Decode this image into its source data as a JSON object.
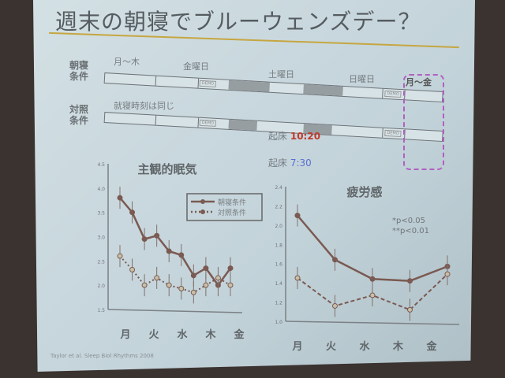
{
  "title": "週末の朝寝でブルーウェンズデー？",
  "schedule": {
    "row1_label": "朝寝\n条件",
    "row2_label": "対照\n条件",
    "mon_thu": "月～木",
    "fri": "金曜日",
    "sat": "土曜日",
    "sun": "日曜日",
    "mon_fri": "月～金",
    "same_bedtime": "就寝時刻は同じ",
    "wake_label": "起床",
    "wake_late": "10:20",
    "wake_normal": "7:30",
    "demo": "DEMO"
  },
  "citation": "Taylor et al. Sleep Biol Rhythms 2008",
  "colors": {
    "main": "#7a5a52",
    "late_time": "#c0392b",
    "normal_time": "#5a6fd0",
    "dashed_box": "#b060c0"
  },
  "chart_data": [
    {
      "type": "line",
      "title": "主観的眠気",
      "ylim": [
        1.5,
        4.5
      ],
      "yticks": [
        "4.5",
        "4.0",
        "3.5",
        "3.0",
        "2.5",
        "2.0",
        "1.5"
      ],
      "day_labels": [
        "月",
        "火",
        "水",
        "木",
        "金"
      ],
      "legend": "top-right",
      "series": [
        {
          "name": "朝寝条件",
          "style": "solid",
          "values": [
            3.8,
            3.5,
            2.95,
            3.02,
            2.7,
            2.62,
            2.2,
            2.35,
            2.0,
            2.35
          ]
        },
        {
          "name": "対照条件",
          "style": "dotted",
          "values": [
            2.6,
            2.32,
            2.0,
            2.15,
            2.0,
            1.93,
            1.85,
            2.0,
            2.15,
            2.0
          ]
        }
      ]
    },
    {
      "type": "line",
      "title": "疲労感",
      "ylim": [
        1.0,
        2.4
      ],
      "yticks": [
        "2.4",
        "2.2",
        "2.0",
        "1.8",
        "1.6",
        "1.4",
        "1.2",
        "1.0"
      ],
      "categories": [
        "月",
        "火",
        "水",
        "木",
        "金"
      ],
      "annotations": [
        "*p<0.05",
        "**p<0.01"
      ],
      "series": [
        {
          "style": "solid",
          "values": [
            2.1,
            1.64,
            1.44,
            1.42,
            1.57
          ]
        },
        {
          "style": "dashed",
          "values": [
            1.45,
            1.16,
            1.27,
            1.12,
            1.49
          ]
        }
      ]
    }
  ]
}
